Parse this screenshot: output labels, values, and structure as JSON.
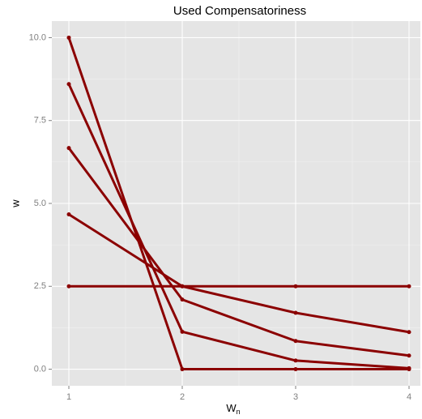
{
  "chart_data": {
    "type": "line",
    "title": "Used Compensatoriness",
    "xlabel": "W",
    "xlabel_subscript": "n",
    "ylabel": "w",
    "x": [
      1,
      2,
      3,
      4
    ],
    "series": [
      {
        "color": "#8b0000",
        "values": [
          10,
          0,
          0,
          0
        ]
      },
      {
        "color": "#8b0000",
        "values": [
          8.6,
          1.13,
          0.26,
          0.03
        ]
      },
      {
        "color": "#8b0000",
        "values": [
          6.67,
          2.1,
          0.85,
          0.41
        ]
      },
      {
        "color": "#8b0000",
        "values": [
          4.67,
          2.5,
          1.7,
          1.12
        ]
      },
      {
        "color": "#8b0000",
        "values": [
          2.5,
          2.5,
          2.5,
          2.5
        ]
      }
    ],
    "xlim": [
      0.85,
      4.1
    ],
    "xticks": [
      1,
      2,
      3,
      4
    ],
    "xminor": [
      1.5,
      2.5,
      3.5
    ],
    "ylim": [
      -0.5,
      10.5
    ],
    "yticks": [
      {
        "value": 0,
        "label": "0.0"
      },
      {
        "value": 2.5,
        "label": "2.5"
      },
      {
        "value": 5,
        "label": "5.0"
      },
      {
        "value": 7.5,
        "label": "7.5"
      },
      {
        "value": 10,
        "label": "10.0"
      }
    ],
    "yminor": [
      1.25,
      3.75,
      6.25,
      8.75
    ],
    "grid": true
  }
}
